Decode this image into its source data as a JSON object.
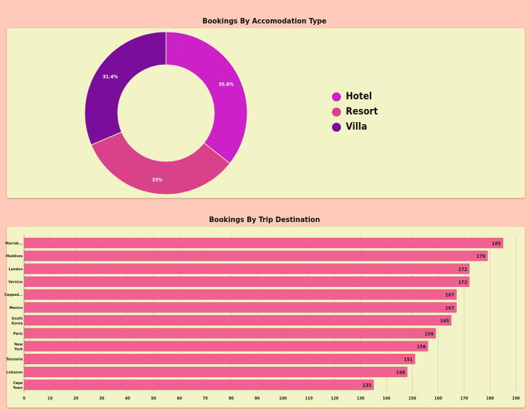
{
  "chart_data": [
    {
      "type": "pie",
      "title": "Bookings By Accomodation Type",
      "categories": [
        "Hotel",
        "Resort",
        "Villa"
      ],
      "values": [
        35.6,
        33.0,
        31.4
      ],
      "value_labels": [
        "35.6%",
        "33%",
        "31.4%"
      ],
      "colors": [
        "#cc20c8",
        "#d9428b",
        "#7a0e9a"
      ],
      "legend": "right"
    },
    {
      "type": "bar",
      "orientation": "horizontal",
      "title": "Bookings By Trip Destination",
      "categories": [
        "Marrak...",
        "Maldives",
        "London",
        "Vernice",
        "Cappad...",
        "Mexico",
        "South Korea",
        "Paris",
        "New York",
        "Tanzania",
        "Lebanon",
        "Cape Town"
      ],
      "values": [
        185,
        179,
        172,
        172,
        167,
        167,
        165,
        159,
        156,
        151,
        148,
        135
      ],
      "xticks": [
        0,
        10,
        20,
        30,
        40,
        50,
        60,
        70,
        80,
        90,
        100,
        110,
        120,
        130,
        140,
        150,
        160,
        170,
        180,
        190
      ],
      "xlim": [
        0,
        190
      ],
      "grid": true,
      "bar_color": "#f06090"
    }
  ]
}
